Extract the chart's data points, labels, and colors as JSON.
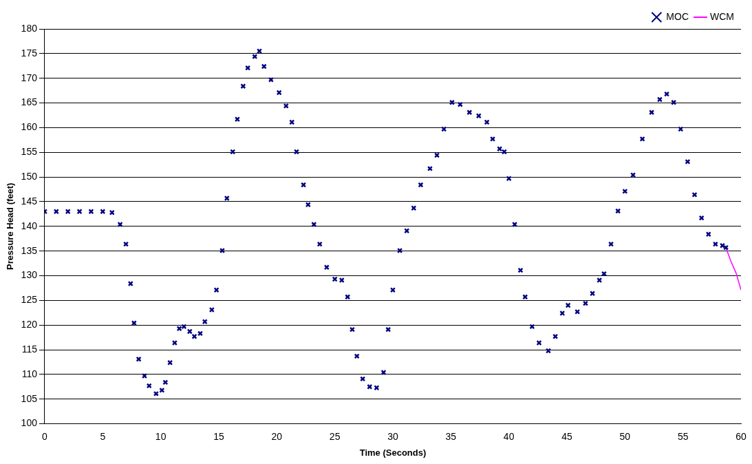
{
  "chart_data": {
    "type": "scatter",
    "xlabel": "Time (Seconds)",
    "ylabel": "Pressure Head (feet)",
    "xlim": [
      0,
      60
    ],
    "xticks": [
      0,
      5,
      10,
      15,
      20,
      25,
      30,
      35,
      40,
      45,
      50,
      55,
      60
    ],
    "ylim": [
      100,
      180
    ],
    "yticks": [
      100,
      105,
      110,
      115,
      120,
      125,
      130,
      135,
      140,
      145,
      150,
      155,
      160,
      165,
      170,
      175,
      180
    ],
    "grid": "y",
    "legend": "top right",
    "series": [
      {
        "name": "MOC",
        "color": "#000080",
        "marker": "cross",
        "x": [
          0,
          1,
          2,
          3,
          4,
          5,
          5.8,
          6.5,
          7.0,
          7.4,
          7.7,
          8.1,
          8.6,
          9.0,
          9.6,
          10.1,
          10.4,
          10.8,
          11.2,
          11.6,
          12.0,
          12.5,
          12.9,
          13.4,
          13.8,
          14.4,
          14.8,
          15.3,
          15.7,
          16.2,
          16.6,
          17.1,
          17.5,
          18.1,
          18.5,
          18.9,
          19.5,
          20.2,
          20.8,
          21.3,
          21.7,
          22.3,
          22.7,
          23.2,
          23.7,
          24.3,
          25.0,
          25.6,
          26.1,
          26.5,
          26.9,
          27.4,
          28.0,
          28.6,
          29.2,
          29.6,
          30.0,
          30.6,
          31.2,
          31.8,
          32.4,
          33.2,
          33.8,
          34.4,
          35.1,
          35.8,
          36.6,
          37.4,
          38.1,
          38.6,
          39.2,
          39.6,
          40.0,
          40.5,
          41.0,
          41.4,
          42.0,
          42.6,
          43.4,
          44.0,
          44.6,
          45.1,
          45.9,
          46.6,
          47.2,
          47.8,
          48.2,
          48.8,
          49.4,
          50.0,
          50.7,
          51.5,
          52.3,
          53.0,
          53.6,
          54.2,
          54.8,
          55.4,
          56.0,
          56.6,
          57.2,
          57.8,
          58.4,
          58.7
        ],
        "values": [
          143,
          143,
          143,
          143,
          143,
          143,
          142.8,
          140.4,
          136.4,
          128.4,
          120.4,
          113.1,
          109.7,
          107.7,
          106.1,
          106.8,
          108.4,
          112.4,
          116.4,
          119.3,
          119.7,
          118.7,
          117.7,
          118.3,
          120.7,
          123.1,
          127.1,
          135.1,
          145.7,
          155.1,
          161.7,
          168.4,
          172.1,
          174.4,
          175.5,
          172.4,
          169.7,
          167.1,
          164.4,
          161.1,
          155.1,
          148.4,
          144.4,
          140.4,
          136.4,
          131.7,
          129.3,
          129.1,
          125.7,
          119.1,
          113.7,
          109.1,
          107.5,
          107.3,
          110.4,
          119.1,
          127.1,
          135.1,
          139.1,
          143.7,
          148.4,
          151.7,
          154.4,
          159.7,
          165.1,
          164.7,
          163.1,
          162.4,
          161.1,
          157.7,
          155.7,
          155.1,
          149.7,
          140.4,
          131.1,
          125.7,
          119.7,
          116.4,
          114.8,
          117.7,
          122.4,
          124,
          122.7,
          124.4,
          126.4,
          129.1,
          130.4,
          136.4,
          143.1,
          147.1,
          150.4,
          157.7,
          163.1,
          165.7,
          166.8,
          165.1,
          159.7,
          153.1,
          146.4,
          141.7,
          138.4,
          136.4,
          136.1,
          135.7
        ]
      },
      {
        "name": "WCM",
        "color": "#ff00ff",
        "type": "line",
        "marker": "none",
        "x": [
          58.7,
          59.1,
          59.6,
          60
        ],
        "values": [
          135.7,
          133.1,
          130.4,
          127.1
        ]
      }
    ]
  }
}
